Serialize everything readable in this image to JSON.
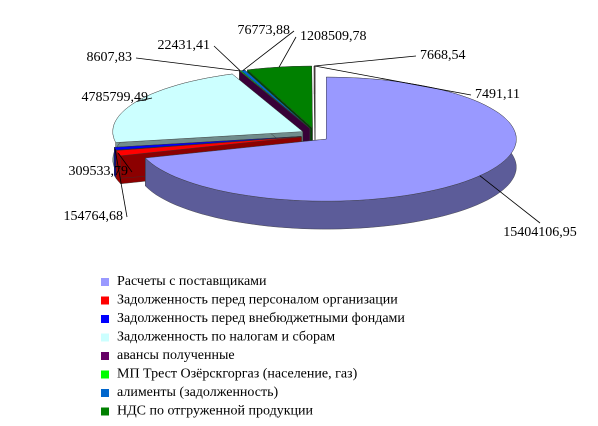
{
  "chart_data": {
    "type": "pie3d",
    "categories": [
      "Расчеты с поставщиками",
      "Задолженность перед персоналом организации",
      "Задолженность перед внебюджетными фондами",
      "Задолженность по налогам и сборам",
      "авансы полученные",
      "МП Трест Озёрскгоргаз (население, газ)",
      "алименты (задолженность)",
      "НДС по отгруженной продукции",
      null,
      null
    ],
    "values": [
      15404106.95,
      309533.79,
      154764.68,
      4785799.49,
      8607.83,
      22431.41,
      76773.88,
      1208509.78,
      7668.54,
      7491.11
    ],
    "value_labels": [
      "15404106,95",
      "309533,79",
      "154764,68",
      "4785799,49",
      "8607,83",
      "22431,41",
      "76773,88",
      "1208509,78",
      "7668,54",
      "7491,11"
    ],
    "colors": [
      "#9999ff",
      "#ff0000",
      "#0000ff",
      "#ccffff",
      "#660066",
      "#00ff00",
      "#0066cc",
      "#008000",
      "#ff8080",
      "#993366"
    ],
    "legend": "bottom"
  }
}
